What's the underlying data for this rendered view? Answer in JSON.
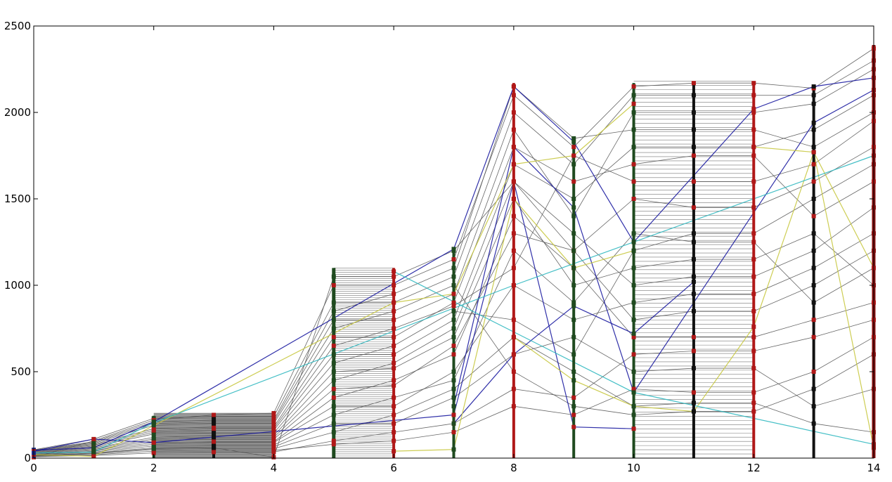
{
  "chart_data": {
    "type": "line",
    "title": "",
    "xlabel": "",
    "ylabel": "",
    "xlim": [
      0,
      14
    ],
    "ylim": [
      0,
      2500
    ],
    "x_ticks": [
      "0",
      "2",
      "4",
      "6",
      "8",
      "10",
      "12",
      "14"
    ],
    "y_ticks": [
      "0",
      "500",
      "1000",
      "1500",
      "2000",
      "2500"
    ],
    "grid": false,
    "legend": "none",
    "x": [
      0,
      1,
      2,
      3,
      4,
      5,
      6,
      7,
      8,
      9,
      10,
      11,
      12,
      13,
      14
    ],
    "column_max": [
      50,
      120,
      245,
      260,
      265,
      1100,
      1100,
      1210,
      2170,
      1860,
      2170,
      2180,
      2180,
      2150,
      2390
    ],
    "column_marker_colors": [
      "#1a2a8a",
      "#1f4a1f",
      "#1f4a1f",
      "#111111",
      "#b01818",
      "#1f4a1f",
      "#b01818",
      "#1f4a1f",
      "#b01818",
      "#1f4a1f",
      "#1f4a1f",
      "#111111",
      "#b01818",
      "#111111",
      "#8a1010"
    ],
    "flat_segments": [
      {
        "from": 2,
        "to": 4,
        "max": 260
      },
      {
        "from": 5,
        "to": 6,
        "max": 1100
      },
      {
        "from": 10,
        "to": 12,
        "max": 2180
      }
    ],
    "series": [
      {
        "color": "#555555",
        "values": [
          10,
          20,
          40,
          45,
          45,
          80,
          100,
          150,
          300,
          250,
          400,
          380,
          380,
          500,
          700
        ]
      },
      {
        "color": "#555555",
        "values": [
          15,
          30,
          60,
          65,
          65,
          200,
          200,
          350,
          600,
          700,
          500,
          520,
          520,
          300,
          400
        ]
      },
      {
        "color": "#555555",
        "values": [
          20,
          40,
          80,
          90,
          90,
          300,
          300,
          500,
          1000,
          800,
          900,
          950,
          950,
          1100,
          1300
        ]
      },
      {
        "color": "#555555",
        "values": [
          25,
          50,
          100,
          110,
          110,
          400,
          420,
          650,
          1300,
          1200,
          1500,
          1450,
          1450,
          1600,
          1800
        ]
      },
      {
        "color": "#555555",
        "values": [
          30,
          60,
          120,
          130,
          130,
          500,
          520,
          700,
          1500,
          1000,
          1100,
          1150,
          1150,
          1300,
          1000
        ]
      },
      {
        "color": "#555555",
        "values": [
          35,
          70,
          150,
          160,
          160,
          600,
          600,
          800,
          1700,
          1500,
          1800,
          1800,
          1800,
          1900,
          2100
        ]
      },
      {
        "color": "#555555",
        "values": [
          40,
          80,
          170,
          180,
          180,
          700,
          700,
          900,
          1800,
          1600,
          1700,
          1750,
          1750,
          1400,
          1600
        ]
      },
      {
        "color": "#555555",
        "values": [
          45,
          90,
          200,
          210,
          210,
          800,
          800,
          950,
          1900,
          1400,
          2000,
          2000,
          2000,
          2050,
          2250
        ]
      },
      {
        "color": "#555555",
        "values": [
          48,
          110,
          230,
          240,
          240,
          900,
          900,
          1050,
          2000,
          1700,
          2100,
          2100,
          2100,
          2100,
          2300
        ]
      },
      {
        "color": "#555555",
        "values": [
          5,
          100,
          220,
          250,
          260,
          1000,
          1000,
          1150,
          2100,
          1800,
          2150,
          2170,
          2170,
          2140,
          2370
        ]
      },
      {
        "color": "#555555",
        "values": [
          12,
          25,
          50,
          55,
          55,
          150,
          250,
          400,
          700,
          500,
          300,
          320,
          320,
          200,
          150
        ]
      },
      {
        "color": "#555555",
        "values": [
          18,
          35,
          70,
          75,
          75,
          250,
          350,
          450,
          1200,
          900,
          1300,
          1250,
          1250,
          900,
          1100
        ]
      },
      {
        "color": "#555555",
        "values": [
          22,
          45,
          90,
          95,
          95,
          350,
          450,
          600,
          1400,
          1100,
          700,
          700,
          700,
          800,
          900
        ]
      },
      {
        "color": "#555555",
        "values": [
          28,
          55,
          110,
          120,
          120,
          450,
          550,
          750,
          1600,
          1300,
          1000,
          1050,
          1050,
          1200,
          1450
        ]
      },
      {
        "color": "#555555",
        "values": [
          32,
          65,
          140,
          145,
          145,
          550,
          650,
          850,
          800,
          600,
          1200,
          1300,
          1300,
          1500,
          1700
        ]
      },
      {
        "color": "#555555",
        "values": [
          38,
          75,
          160,
          170,
          170,
          650,
          750,
          880,
          1100,
          1750,
          1600,
          1600,
          1600,
          1700,
          1950
        ]
      },
      {
        "color": "#555555",
        "values": [
          42,
          85,
          190,
          200,
          200,
          750,
          850,
          1000,
          500,
          300,
          250,
          270,
          270,
          400,
          600
        ]
      },
      {
        "color": "#555555",
        "values": [
          46,
          95,
          210,
          220,
          220,
          850,
          950,
          1100,
          2150,
          1850,
          1900,
          1900,
          1900,
          1800,
          2000
        ]
      },
      {
        "color": "#555555",
        "values": [
          8,
          15,
          30,
          35,
          35,
          100,
          150,
          200,
          400,
          350,
          600,
          620,
          620,
          700,
          800
        ]
      },
      {
        "color": "#555555",
        "values": [
          14,
          28,
          55,
          60,
          5,
          1050,
          1050,
          1200,
          1600,
          1200,
          800,
          850,
          850,
          1000,
          1200
        ]
      },
      {
        "color": "#1a1aa0",
        "values": [
          45,
          60,
          210,
          null,
          null,
          null,
          null,
          1210,
          2150,
          1830,
          1250,
          null,
          2020,
          2150,
          2200
        ]
      },
      {
        "color": "#1a1aa0",
        "values": [
          40,
          110,
          90,
          null,
          null,
          null,
          null,
          250,
          1600,
          180,
          170,
          null,
          null,
          null,
          null
        ]
      },
      {
        "color": "#1a1aa0",
        "values": [
          null,
          null,
          null,
          null,
          null,
          null,
          null,
          200,
          600,
          880,
          720,
          1020,
          null,
          null,
          null
        ]
      },
      {
        "color": "#1a1aa0",
        "values": [
          null,
          null,
          null,
          null,
          null,
          null,
          null,
          300,
          1800,
          1450,
          380,
          null,
          null,
          1940,
          2130
        ]
      },
      {
        "color": "#c8c840",
        "values": [
          20,
          10,
          null,
          null,
          null,
          null,
          900,
          950,
          1700,
          1750,
          2050,
          null,
          null,
          null,
          null
        ]
      },
      {
        "color": "#c8c840",
        "values": [
          null,
          null,
          null,
          null,
          null,
          null,
          40,
          50,
          1500,
          1100,
          1200,
          null,
          null,
          null,
          null
        ]
      },
      {
        "color": "#c8c840",
        "values": [
          null,
          null,
          null,
          null,
          null,
          null,
          null,
          null,
          700,
          450,
          300,
          270,
          760,
          1770,
          60
        ]
      },
      {
        "color": "#c8c840",
        "values": [
          null,
          null,
          null,
          null,
          null,
          null,
          null,
          null,
          null,
          null,
          null,
          null,
          1800,
          1770,
          1100
        ]
      },
      {
        "color": "#30b8c0",
        "values": [
          30,
          35,
          205,
          null,
          null,
          null,
          null,
          null,
          1000,
          null,
          null,
          null,
          null,
          null,
          1750
        ]
      },
      {
        "color": "#30b8c0",
        "values": [
          null,
          null,
          null,
          null,
          null,
          null,
          1080,
          null,
          null,
          null,
          380,
          null,
          null,
          null,
          80
        ]
      }
    ]
  }
}
